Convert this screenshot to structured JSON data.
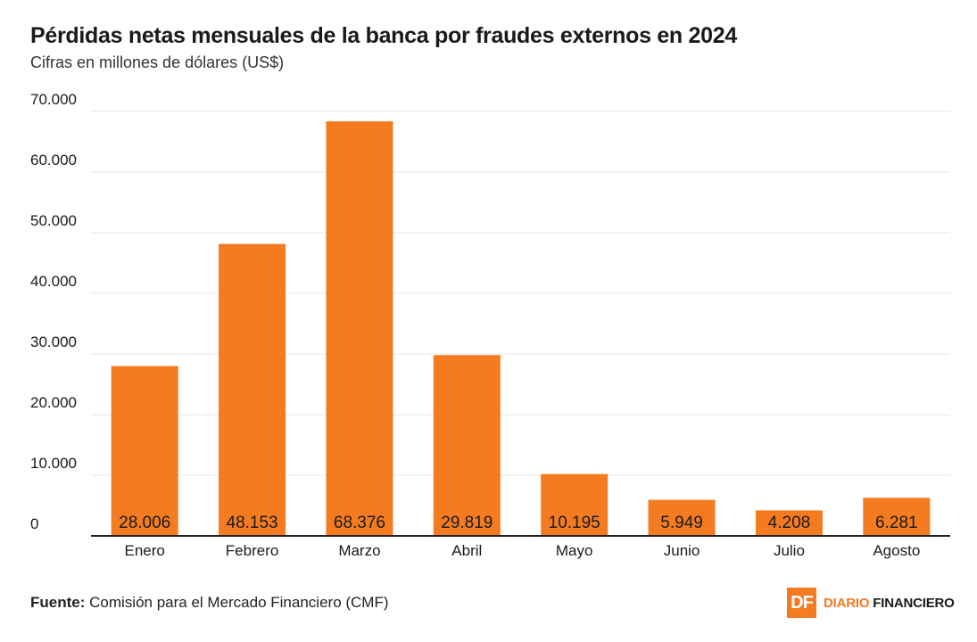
{
  "header": {
    "title": "Pérdidas netas mensuales de la banca por fraudes externos en 2024",
    "subtitle": "Cifras en millones de dólares (US$)"
  },
  "footer": {
    "source_label": "Fuente:",
    "source_text": "Comisión para el Mercado Financiero (CMF)",
    "brand_mark": "DF",
    "brand_word1": "DIARIO",
    "brand_word2": "FINANCIERO"
  },
  "colors": {
    "bar": "#f47b20",
    "grid": "#e6e6e6",
    "axis": "#222222",
    "text": "#1a1a1a"
  },
  "chart_data": {
    "type": "bar",
    "categories": [
      "Enero",
      "Febrero",
      "Marzo",
      "Abril",
      "Mayo",
      "Junio",
      "Julio",
      "Agosto"
    ],
    "values": [
      28006,
      48153,
      68376,
      29819,
      10195,
      5949,
      4208,
      6281
    ],
    "value_labels": [
      "28.006",
      "48.153",
      "68.376",
      "29.819",
      "10.195",
      "5.949",
      "4.208",
      "6.281"
    ],
    "ylim": [
      0,
      70000
    ],
    "y_ticks": [
      0,
      10000,
      20000,
      30000,
      40000,
      50000,
      60000,
      70000
    ],
    "y_tick_labels": [
      "0",
      "10.000",
      "20.000",
      "30.000",
      "40.000",
      "50.000",
      "60.000",
      "70.000"
    ],
    "grid": true,
    "legend": "none"
  }
}
